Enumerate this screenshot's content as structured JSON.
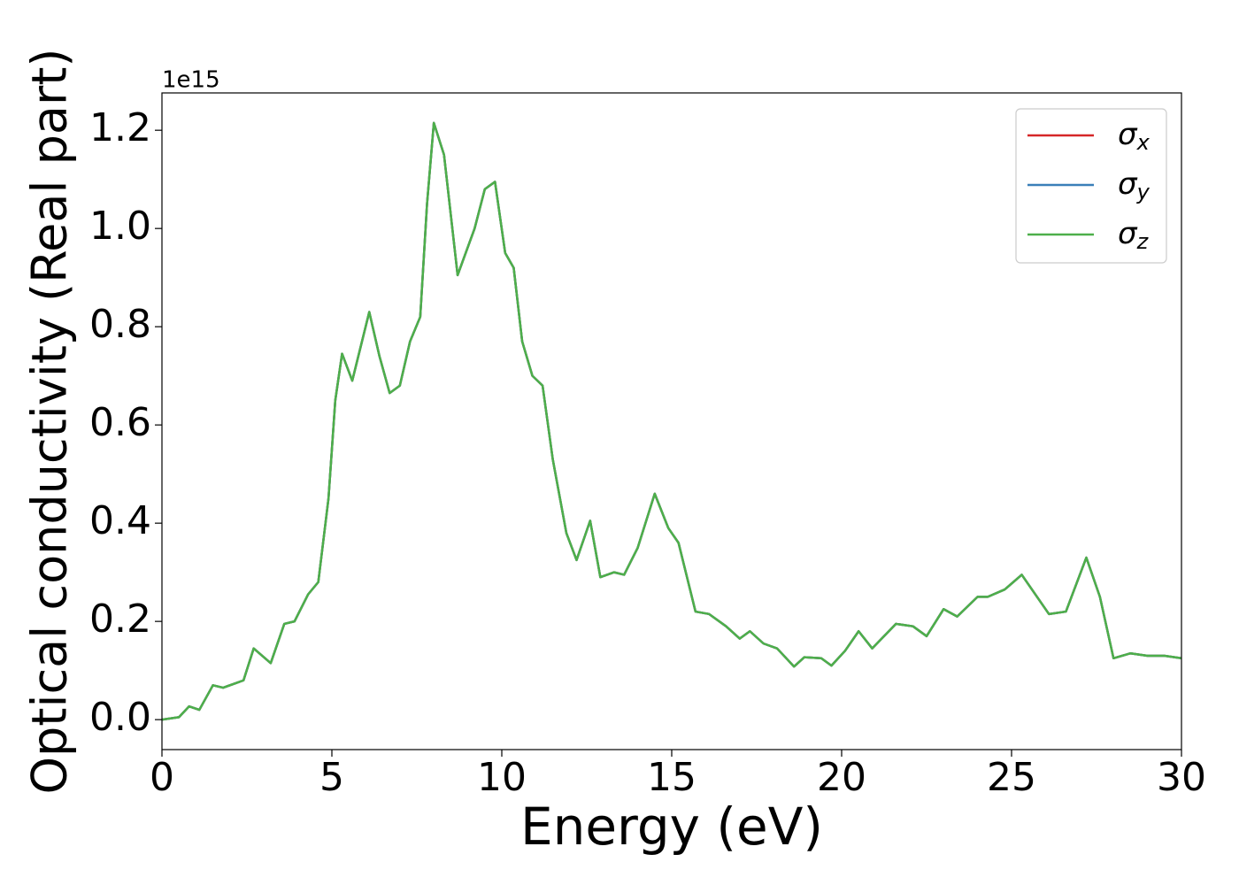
{
  "chart_data": {
    "type": "line",
    "xlabel": "Energy (eV)",
    "ylabel": "Optical conductivity (Real part)",
    "y_offset_label": "1e15",
    "x": [
      0,
      0.5,
      0.8,
      1.1,
      1.5,
      1.8,
      2.2,
      2.4,
      2.7,
      3.2,
      3.6,
      3.9,
      4.3,
      4.6,
      4.9,
      5.1,
      5.3,
      5.6,
      6.1,
      6.4,
      6.7,
      7.0,
      7.3,
      7.6,
      7.8,
      8.0,
      8.3,
      8.7,
      9.2,
      9.5,
      9.8,
      10.1,
      10.35,
      10.6,
      10.9,
      11.2,
      11.5,
      11.9,
      12.2,
      12.6,
      12.9,
      13.3,
      13.6,
      14.0,
      14.5,
      14.9,
      15.2,
      15.7,
      16.1,
      16.6,
      17.0,
      17.3,
      17.7,
      18.1,
      18.6,
      18.9,
      19.4,
      19.7,
      20.1,
      20.5,
      20.9,
      21.6,
      22.1,
      22.5,
      23.0,
      23.4,
      24.0,
      24.3,
      24.8,
      25.3,
      25.8,
      26.1,
      26.6,
      27.2,
      27.6,
      28.0,
      28.5,
      29.0,
      29.5,
      30.0
    ],
    "series": [
      {
        "name": "σx",
        "color": "#d62728",
        "values": [
          0,
          0.005,
          0.027,
          0.02,
          0.07,
          0.065,
          0.075,
          0.08,
          0.145,
          0.115,
          0.195,
          0.2,
          0.255,
          0.28,
          0.45,
          0.65,
          0.745,
          0.69,
          0.83,
          0.74,
          0.665,
          0.68,
          0.77,
          0.82,
          1.05,
          1.215,
          1.15,
          0.905,
          1.0,
          1.08,
          1.095,
          0.95,
          0.92,
          0.77,
          0.7,
          0.68,
          0.53,
          0.38,
          0.325,
          0.405,
          0.29,
          0.3,
          0.295,
          0.35,
          0.46,
          0.39,
          0.36,
          0.22,
          0.215,
          0.19,
          0.165,
          0.18,
          0.155,
          0.145,
          0.108,
          0.127,
          0.125,
          0.11,
          0.14,
          0.18,
          0.145,
          0.195,
          0.19,
          0.17,
          0.225,
          0.21,
          0.25,
          0.25,
          0.265,
          0.295,
          0.245,
          0.215,
          0.22,
          0.33,
          0.25,
          0.125,
          0.135,
          0.13,
          0.13,
          0.125
        ]
      },
      {
        "name": "σy",
        "color": "#3a7fb8",
        "values": [
          0,
          0.005,
          0.027,
          0.02,
          0.07,
          0.065,
          0.075,
          0.08,
          0.145,
          0.115,
          0.195,
          0.2,
          0.255,
          0.28,
          0.45,
          0.65,
          0.745,
          0.69,
          0.83,
          0.74,
          0.665,
          0.68,
          0.77,
          0.82,
          1.05,
          1.215,
          1.15,
          0.905,
          1.0,
          1.08,
          1.095,
          0.95,
          0.92,
          0.77,
          0.7,
          0.68,
          0.53,
          0.38,
          0.325,
          0.405,
          0.29,
          0.3,
          0.295,
          0.35,
          0.46,
          0.39,
          0.36,
          0.22,
          0.215,
          0.19,
          0.165,
          0.18,
          0.155,
          0.145,
          0.108,
          0.127,
          0.125,
          0.11,
          0.14,
          0.18,
          0.145,
          0.195,
          0.19,
          0.17,
          0.225,
          0.21,
          0.25,
          0.25,
          0.265,
          0.295,
          0.245,
          0.215,
          0.22,
          0.33,
          0.25,
          0.125,
          0.135,
          0.13,
          0.13,
          0.125
        ]
      },
      {
        "name": "σz",
        "color": "#4daf4a",
        "values": [
          0,
          0.005,
          0.027,
          0.02,
          0.07,
          0.065,
          0.075,
          0.08,
          0.145,
          0.115,
          0.195,
          0.2,
          0.255,
          0.28,
          0.45,
          0.65,
          0.745,
          0.69,
          0.83,
          0.74,
          0.665,
          0.68,
          0.77,
          0.82,
          1.05,
          1.215,
          1.15,
          0.905,
          1.0,
          1.08,
          1.095,
          0.95,
          0.92,
          0.77,
          0.7,
          0.68,
          0.53,
          0.38,
          0.325,
          0.405,
          0.29,
          0.3,
          0.295,
          0.35,
          0.46,
          0.39,
          0.36,
          0.22,
          0.215,
          0.19,
          0.165,
          0.18,
          0.155,
          0.145,
          0.108,
          0.127,
          0.125,
          0.11,
          0.14,
          0.18,
          0.145,
          0.195,
          0.19,
          0.17,
          0.225,
          0.21,
          0.25,
          0.25,
          0.265,
          0.295,
          0.245,
          0.215,
          0.22,
          0.33,
          0.25,
          0.125,
          0.135,
          0.13,
          0.13,
          0.125
        ]
      }
    ],
    "xlim": [
      0,
      30
    ],
    "xticks": [
      0,
      5,
      10,
      15,
      20,
      25,
      30
    ],
    "ylim": [
      -0.061,
      1.276
    ],
    "yticks": [
      {
        "value": 0,
        "label": "0.0"
      },
      0.2,
      0.4,
      0.6,
      0.8,
      {
        "value": 1,
        "label": "1.0"
      },
      1.2
    ],
    "grid": false,
    "legend": "upper right"
  }
}
